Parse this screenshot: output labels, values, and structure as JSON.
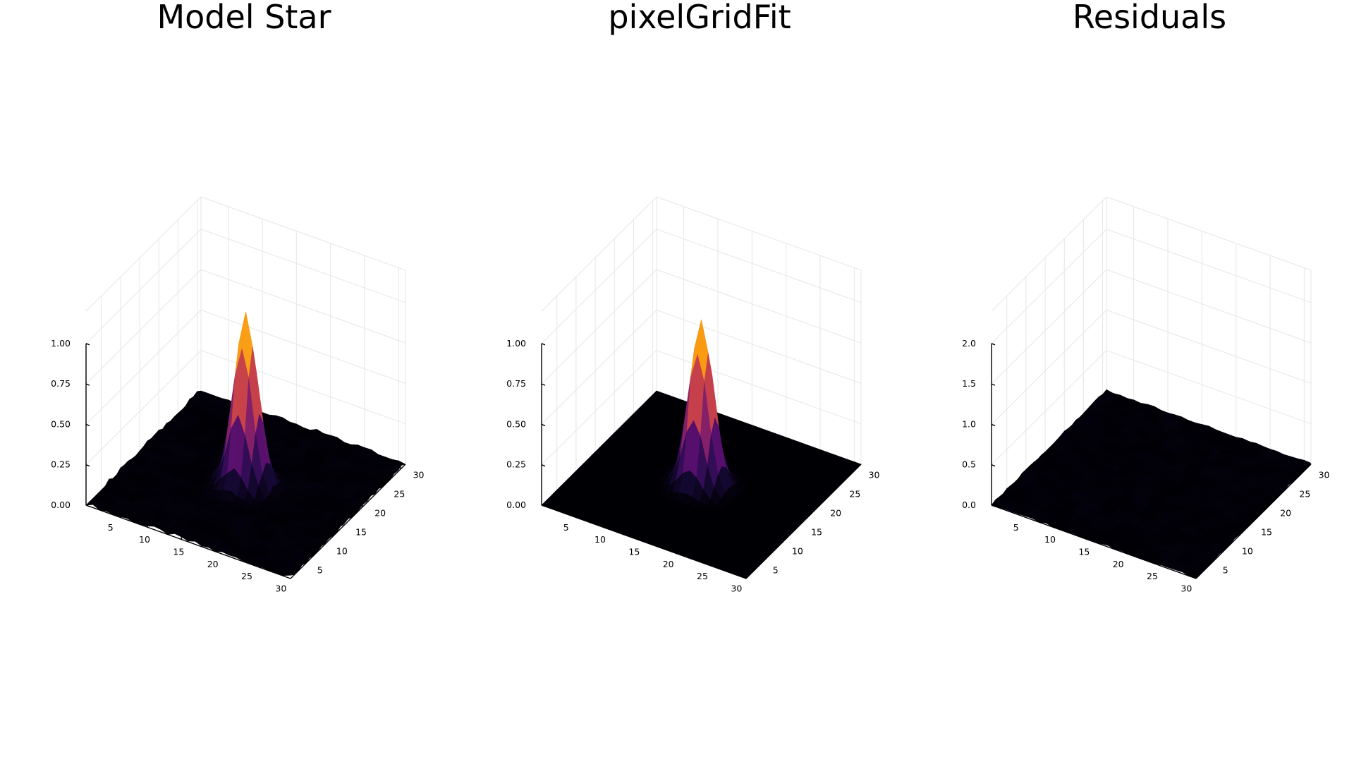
{
  "chart_data": [
    {
      "type": "surface",
      "title": "Model Star",
      "x_ticks": [
        "5",
        "10",
        "15",
        "20",
        "25",
        "30"
      ],
      "y_ticks": [
        "5",
        "10",
        "15",
        "20",
        "25",
        "30"
      ],
      "z_ticks": [
        "0.00",
        "0.25",
        "0.50",
        "0.75",
        "1.00"
      ],
      "xlim": [
        1,
        31
      ],
      "ylim": [
        1,
        31
      ],
      "zlim": [
        0,
        1.2
      ],
      "grid": true,
      "peak": {
        "x": 16,
        "y": 16,
        "height": 1.05
      },
      "background_level": 0.03,
      "colormap": "inferno"
    },
    {
      "type": "surface",
      "title": "pixelGridFit",
      "x_ticks": [
        "5",
        "10",
        "15",
        "20",
        "25",
        "30"
      ],
      "y_ticks": [
        "5",
        "10",
        "15",
        "20",
        "25",
        "30"
      ],
      "z_ticks": [
        "0.00",
        "0.25",
        "0.50",
        "0.75",
        "1.00"
      ],
      "xlim": [
        1,
        31
      ],
      "ylim": [
        1,
        31
      ],
      "zlim": [
        0,
        1.2
      ],
      "grid": true,
      "peak": {
        "x": 16,
        "y": 16,
        "height": 1.02
      },
      "background_level": 0.0,
      "colormap": "inferno"
    },
    {
      "type": "surface",
      "title": "Residuals",
      "x_ticks": [
        "5",
        "10",
        "15",
        "20",
        "25",
        "30"
      ],
      "y_ticks": [
        "5",
        "10",
        "15",
        "20",
        "25",
        "30"
      ],
      "z_ticks": [
        "0.0",
        "0.5",
        "1.0",
        "1.5",
        "2.0"
      ],
      "xlim": [
        1,
        31
      ],
      "ylim": [
        1,
        31
      ],
      "zlim": [
        0,
        2.4
      ],
      "grid": true,
      "peak": {
        "x": 16,
        "y": 16,
        "height": 0.0
      },
      "background_level": 0.03,
      "colormap": "inferno"
    }
  ]
}
